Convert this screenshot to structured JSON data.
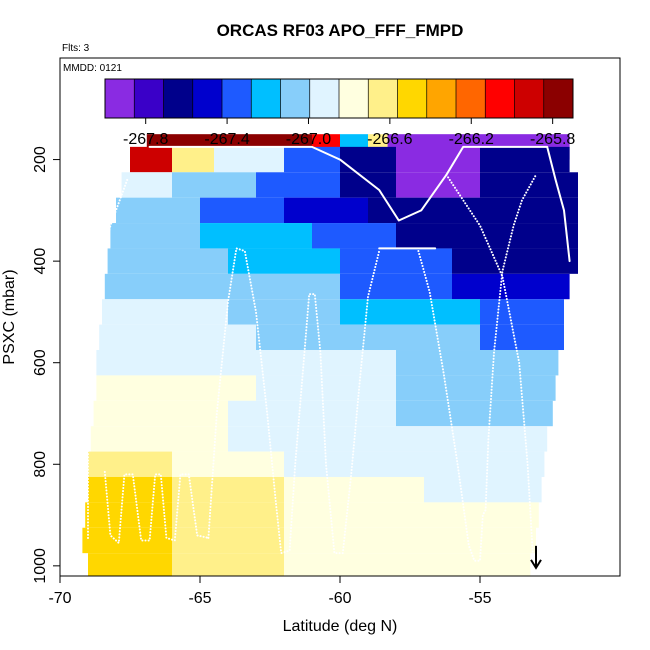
{
  "chart_data": {
    "type": "heatmap",
    "title": "ORCAS RF03 APO_FFF_FMPD",
    "annotations": [
      "Flts: 3",
      "MMDD: 0121"
    ],
    "xlabel": "Latitude (deg N)",
    "ylabel": "PSXC (mbar)",
    "xlim": [
      -70,
      -50
    ],
    "ylim": [
      1020,
      0
    ],
    "x_ticks": [
      -70,
      -65,
      -60,
      -55
    ],
    "x_tick_labels": [
      "-70",
      "-65",
      "-60",
      "-55"
    ],
    "y_ticks": [
      200,
      400,
      600,
      800,
      1000
    ],
    "y_tick_labels": [
      "200",
      "400",
      "600",
      "800",
      "1000"
    ],
    "colorbar": {
      "range": [
        -268.0,
        -265.7
      ],
      "tick_values": [
        -267.8,
        -267.4,
        -267.0,
        -266.6,
        -266.2,
        -265.8
      ],
      "tick_labels": [
        "-267.8",
        "-267.4",
        "-267.0",
        "-266.6",
        "-266.2",
        "-265.8"
      ],
      "colors": [
        "#8a2be2",
        "#3a00c8",
        "#00008b",
        "#0000cd",
        "#1e5aff",
        "#00bfff",
        "#87cefa",
        "#e0f4ff",
        "#ffffe0",
        "#fff08a",
        "#ffd700",
        "#ffa500",
        "#ff6600",
        "#ff0000",
        "#cd0000",
        "#8b0000"
      ]
    },
    "heatmap_rows": [
      {
        "p": 175,
        "segments": [
          [
            -66.9,
            -61.0,
            -265.8
          ],
          [
            -61.0,
            -60.0,
            -266.0
          ],
          [
            -60.0,
            -59.0,
            -267.2
          ],
          [
            -59.0,
            -58.3,
            -266.6
          ],
          [
            -58.3,
            -51.8,
            -267.9
          ]
        ]
      },
      {
        "p": 200,
        "segments": [
          [
            -67.5,
            -66.0,
            -265.9
          ],
          [
            -66.0,
            -64.5,
            -266.6
          ],
          [
            -64.5,
            -62.0,
            -266.9
          ],
          [
            -62.0,
            -60.0,
            -267.3
          ],
          [
            -60.0,
            -58.0,
            -267.6
          ],
          [
            -58.0,
            -55.0,
            -267.9
          ],
          [
            -55.0,
            -51.8,
            -267.6
          ]
        ]
      },
      {
        "p": 250,
        "segments": [
          [
            -67.8,
            -66.0,
            -266.9
          ],
          [
            -66.0,
            -63.0,
            -267.1
          ],
          [
            -63.0,
            -60.0,
            -267.4
          ],
          [
            -60.0,
            -58.0,
            -267.6
          ],
          [
            -58.0,
            -55.0,
            -267.9
          ],
          [
            -55.0,
            -51.5,
            -267.6
          ]
        ]
      },
      {
        "p": 300,
        "segments": [
          [
            -68.0,
            -65.0,
            -267.1
          ],
          [
            -65.0,
            -62.0,
            -267.3
          ],
          [
            -62.0,
            -59.0,
            -267.5
          ],
          [
            -59.0,
            -56.0,
            -267.7
          ],
          [
            -56.0,
            -51.5,
            -267.6
          ]
        ]
      },
      {
        "p": 350,
        "segments": [
          [
            -68.2,
            -65.0,
            -267.1
          ],
          [
            -65.0,
            -61.0,
            -267.2
          ],
          [
            -61.0,
            -58.0,
            -267.4
          ],
          [
            -58.0,
            -55.0,
            -267.6
          ],
          [
            -55.0,
            -51.5,
            -267.7
          ]
        ]
      },
      {
        "p": 400,
        "segments": [
          [
            -68.3,
            -64.0,
            -267.1
          ],
          [
            -64.0,
            -60.0,
            -267.2
          ],
          [
            -60.0,
            -56.0,
            -267.4
          ],
          [
            -56.0,
            -51.5,
            -267.6
          ]
        ]
      },
      {
        "p": 450,
        "segments": [
          [
            -68.4,
            -64.0,
            -267.0
          ],
          [
            -64.0,
            -60.0,
            -267.1
          ],
          [
            -60.0,
            -56.0,
            -267.3
          ],
          [
            -56.0,
            -51.8,
            -267.5
          ]
        ]
      },
      {
        "p": 500,
        "segments": [
          [
            -68.5,
            -64.0,
            -266.95
          ],
          [
            -64.0,
            -60.0,
            -267.05
          ],
          [
            -60.0,
            -55.0,
            -267.2
          ],
          [
            -55.0,
            -52.0,
            -267.4
          ]
        ]
      },
      {
        "p": 550,
        "segments": [
          [
            -68.6,
            -63.0,
            -266.9
          ],
          [
            -63.0,
            -58.0,
            -267.0
          ],
          [
            -58.0,
            -55.0,
            -267.1
          ],
          [
            -55.0,
            -52.0,
            -267.3
          ]
        ]
      },
      {
        "p": 600,
        "segments": [
          [
            -68.7,
            -63.0,
            -266.85
          ],
          [
            -63.0,
            -58.0,
            -266.95
          ],
          [
            -58.0,
            -52.2,
            -267.1
          ]
        ]
      },
      {
        "p": 650,
        "segments": [
          [
            -68.7,
            -63.0,
            -266.8
          ],
          [
            -63.0,
            -58.0,
            -266.9
          ],
          [
            -58.0,
            -52.3,
            -267.05
          ]
        ]
      },
      {
        "p": 700,
        "segments": [
          [
            -68.8,
            -64.0,
            -266.8
          ],
          [
            -64.0,
            -58.0,
            -266.85
          ],
          [
            -58.0,
            -52.4,
            -267.0
          ]
        ]
      },
      {
        "p": 750,
        "segments": [
          [
            -68.9,
            -64.0,
            -266.75
          ],
          [
            -64.0,
            -58.0,
            -266.85
          ],
          [
            -58.0,
            -52.6,
            -266.95
          ]
        ]
      },
      {
        "p": 800,
        "segments": [
          [
            -69.0,
            -66.0,
            -266.6
          ],
          [
            -66.0,
            -62.0,
            -266.75
          ],
          [
            -62.0,
            -58.0,
            -266.85
          ],
          [
            -58.0,
            -52.7,
            -266.9
          ]
        ]
      },
      {
        "p": 850,
        "segments": [
          [
            -69.0,
            -66.0,
            -266.55
          ],
          [
            -66.0,
            -62.0,
            -266.7
          ],
          [
            -62.0,
            -57.0,
            -266.8
          ],
          [
            -57.0,
            -52.8,
            -266.85
          ]
        ]
      },
      {
        "p": 900,
        "segments": [
          [
            -69.1,
            -66.0,
            -266.55
          ],
          [
            -66.0,
            -62.0,
            -266.7
          ],
          [
            -62.0,
            -57.0,
            -266.78
          ],
          [
            -57.0,
            -52.9,
            -266.82
          ]
        ]
      },
      {
        "p": 950,
        "segments": [
          [
            -69.2,
            -66.0,
            -266.55
          ],
          [
            -66.0,
            -62.0,
            -266.68
          ],
          [
            -62.0,
            -57.0,
            -266.75
          ],
          [
            -57.0,
            -53.0,
            -266.8
          ]
        ]
      },
      {
        "p": 1000,
        "segments": [
          [
            -69.0,
            -66.0,
            -266.55
          ],
          [
            -66.0,
            -62.0,
            -266.68
          ],
          [
            -62.0,
            -57.0,
            -266.75
          ],
          [
            -57.0,
            -53.2,
            -266.78
          ]
        ]
      }
    ],
    "flight_tracks": [
      {
        "style": "solid",
        "points": [
          [
            -66.8,
            175
          ],
          [
            -61.0,
            175
          ],
          [
            -60.0,
            200
          ],
          [
            -58.6,
            260
          ],
          [
            -57.9,
            320
          ],
          [
            -57.1,
            300
          ],
          [
            -56.2,
            230
          ],
          [
            -55.6,
            175
          ],
          [
            -52.6,
            175
          ],
          [
            -52.3,
            240
          ],
          [
            -52.0,
            300
          ],
          [
            -51.8,
            400
          ]
        ]
      },
      {
        "style": "solid",
        "points": [
          [
            -58.6,
            375
          ],
          [
            -56.6,
            375
          ]
        ]
      },
      {
        "style": "dotted",
        "points": [
          [
            -67.6,
            240
          ],
          [
            -68.2,
            330
          ],
          [
            -68.6,
            430
          ],
          [
            -68.8,
            540
          ],
          [
            -69.0,
            660
          ],
          [
            -69.0,
            780
          ],
          [
            -69.0,
            950
          ]
        ]
      },
      {
        "style": "dotted",
        "points": [
          [
            -68.4,
            815
          ],
          [
            -68.2,
            940
          ],
          [
            -67.9,
            955
          ],
          [
            -67.7,
            820
          ],
          [
            -67.4,
            820
          ],
          [
            -67.1,
            950
          ],
          [
            -66.8,
            950
          ],
          [
            -66.6,
            820
          ],
          [
            -66.4,
            820
          ],
          [
            -66.2,
            945
          ],
          [
            -65.9,
            950
          ],
          [
            -65.7,
            820
          ],
          [
            -65.4,
            820
          ],
          [
            -65.1,
            940
          ],
          [
            -64.7,
            945
          ]
        ]
      },
      {
        "style": "dotted",
        "points": [
          [
            -64.7,
            945
          ],
          [
            -64.4,
            700
          ],
          [
            -64.0,
            480
          ],
          [
            -63.7,
            375
          ],
          [
            -63.4,
            380
          ],
          [
            -63.0,
            500
          ],
          [
            -62.6,
            700
          ],
          [
            -62.3,
            870
          ],
          [
            -62.1,
            975
          ],
          [
            -61.8,
            970
          ],
          [
            -61.6,
            800
          ],
          [
            -61.3,
            600
          ],
          [
            -61.1,
            465
          ],
          [
            -60.9,
            465
          ],
          [
            -60.7,
            580
          ],
          [
            -60.5,
            800
          ],
          [
            -60.2,
            975
          ],
          [
            -59.9,
            975
          ],
          [
            -59.6,
            820
          ],
          [
            -59.3,
            640
          ],
          [
            -59.0,
            470
          ],
          [
            -58.6,
            380
          ]
        ]
      },
      {
        "style": "dotted",
        "points": [
          [
            -57.2,
            380
          ],
          [
            -56.8,
            460
          ],
          [
            -56.3,
            620
          ],
          [
            -55.8,
            800
          ],
          [
            -55.4,
            960
          ],
          [
            -55.2,
            990
          ],
          [
            -55.0,
            990
          ],
          [
            -54.9,
            900
          ],
          [
            -54.8,
            890
          ],
          [
            -54.7,
            750
          ],
          [
            -54.5,
            580
          ],
          [
            -54.2,
            420
          ],
          [
            -53.8,
            330
          ],
          [
            -53.5,
            280
          ],
          [
            -53.2,
            250
          ],
          [
            -53.0,
            230
          ]
        ]
      },
      {
        "style": "dotted",
        "points": [
          [
            -56.2,
            230
          ],
          [
            -55.0,
            330
          ],
          [
            -54.2,
            430
          ],
          [
            -53.6,
            600
          ],
          [
            -53.3,
            800
          ],
          [
            -53.1,
            990
          ]
        ]
      }
    ],
    "marker": {
      "shape": "down-arrow",
      "x": -53.0,
      "p": 1000
    }
  }
}
